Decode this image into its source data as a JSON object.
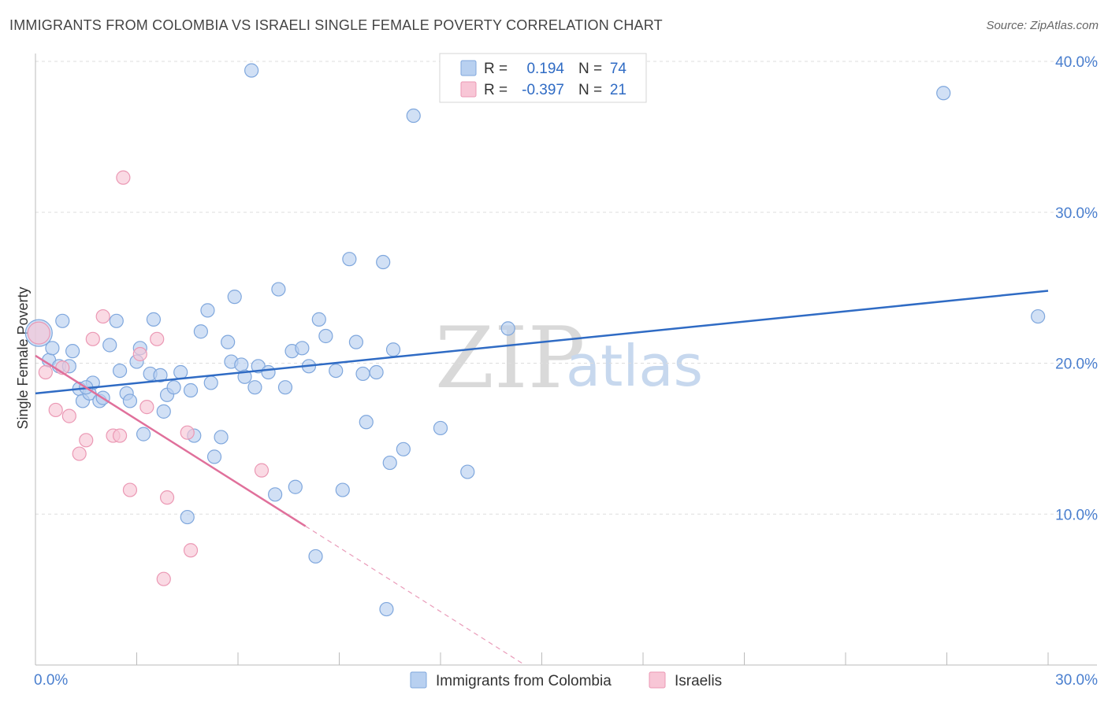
{
  "header": {
    "title": "IMMIGRANTS FROM COLOMBIA VS ISRAELI SINGLE FEMALE POVERTY CORRELATION CHART",
    "source": "Source: ZipAtlas.com"
  },
  "watermark": {
    "zip": "ZIP",
    "atlas": "atlas"
  },
  "colors": {
    "series1_fill": "#b8d0f0",
    "series1_stroke": "#7fa7dd",
    "series1_line": "#2f6bc4",
    "series2_fill": "#f8c6d6",
    "series2_stroke": "#eb98b4",
    "series2_line": "#e0709b",
    "axis_label": "#4a7fcf",
    "grid": "#dddddd"
  },
  "stats_box": {
    "rows": [
      {
        "r_label": "R =",
        "r_value": "0.194",
        "n_label": "N =",
        "n_value": "74"
      },
      {
        "r_label": "R =",
        "r_value": "-0.397",
        "n_label": "N =",
        "n_value": "21"
      }
    ]
  },
  "chart_data": {
    "type": "scatter",
    "title": "IMMIGRANTS FROM COLOMBIA VS ISRAELI SINGLE FEMALE POVERTY CORRELATION CHART",
    "xlabel": "",
    "ylabel": "Single Female Poverty",
    "xlim": [
      0,
      30
    ],
    "ylim": [
      0,
      40
    ],
    "x_tick_labels": [
      "0.0%",
      "30.0%"
    ],
    "y_ticks": [
      10,
      20,
      30,
      40
    ],
    "y_tick_labels": [
      "10.0%",
      "20.0%",
      "30.0%",
      "40.0%"
    ],
    "grid": true,
    "legend": [
      "Immigrants from Colombia",
      "Israelis"
    ],
    "series": [
      {
        "name": "Immigrants from Colombia",
        "r": 0.194,
        "n": 74,
        "trend": {
          "x": [
            0,
            30
          ],
          "y": [
            18.0,
            24.8
          ]
        },
        "points": [
          [
            0.1,
            22.0
          ],
          [
            0.4,
            20.2
          ],
          [
            0.5,
            21.0
          ],
          [
            0.7,
            19.8
          ],
          [
            0.8,
            22.8
          ],
          [
            1.0,
            19.8
          ],
          [
            1.1,
            20.8
          ],
          [
            1.3,
            18.3
          ],
          [
            1.4,
            17.5
          ],
          [
            1.6,
            18.0
          ],
          [
            1.7,
            18.7
          ],
          [
            1.9,
            17.5
          ],
          [
            2.0,
            17.7
          ],
          [
            2.2,
            21.2
          ],
          [
            2.4,
            22.8
          ],
          [
            2.5,
            19.5
          ],
          [
            2.7,
            18.0
          ],
          [
            2.8,
            17.5
          ],
          [
            3.0,
            20.1
          ],
          [
            3.1,
            21.0
          ],
          [
            3.2,
            15.3
          ],
          [
            3.4,
            19.3
          ],
          [
            3.5,
            22.9
          ],
          [
            3.7,
            19.2
          ],
          [
            3.8,
            16.8
          ],
          [
            3.9,
            17.9
          ],
          [
            4.1,
            18.4
          ],
          [
            4.3,
            19.4
          ],
          [
            4.5,
            9.8
          ],
          [
            4.6,
            18.2
          ],
          [
            4.7,
            15.2
          ],
          [
            4.9,
            22.1
          ],
          [
            5.1,
            23.5
          ],
          [
            5.2,
            18.7
          ],
          [
            5.3,
            13.8
          ],
          [
            5.5,
            15.1
          ],
          [
            5.7,
            21.4
          ],
          [
            5.8,
            20.1
          ],
          [
            5.9,
            24.4
          ],
          [
            6.1,
            19.9
          ],
          [
            6.2,
            19.1
          ],
          [
            6.4,
            39.4
          ],
          [
            6.5,
            18.4
          ],
          [
            6.6,
            19.8
          ],
          [
            6.9,
            19.4
          ],
          [
            7.1,
            11.3
          ],
          [
            7.2,
            24.9
          ],
          [
            7.4,
            18.4
          ],
          [
            7.6,
            20.8
          ],
          [
            7.7,
            11.8
          ],
          [
            7.9,
            21.0
          ],
          [
            8.1,
            19.8
          ],
          [
            8.3,
            7.2
          ],
          [
            8.4,
            22.9
          ],
          [
            8.6,
            21.8
          ],
          [
            8.9,
            19.5
          ],
          [
            9.1,
            11.6
          ],
          [
            9.3,
            26.9
          ],
          [
            9.5,
            21.4
          ],
          [
            9.7,
            19.3
          ],
          [
            9.8,
            16.1
          ],
          [
            10.1,
            19.4
          ],
          [
            10.3,
            26.7
          ],
          [
            10.4,
            3.7
          ],
          [
            10.5,
            13.4
          ],
          [
            10.6,
            20.9
          ],
          [
            10.9,
            14.3
          ],
          [
            11.2,
            36.4
          ],
          [
            12.0,
            15.7
          ],
          [
            12.8,
            12.8
          ],
          [
            14.0,
            22.3
          ],
          [
            26.9,
            37.9
          ],
          [
            29.7,
            23.1
          ],
          [
            1.5,
            18.4
          ]
        ]
      },
      {
        "name": "Israelis",
        "r": -0.397,
        "n": 21,
        "trend": {
          "x": [
            0,
            8.0
          ],
          "y": [
            20.5,
            9.2
          ]
        },
        "trend_dashed": {
          "x": [
            8.0,
            14.5
          ],
          "y": [
            9.2,
            0
          ]
        },
        "points": [
          [
            0.1,
            22.0
          ],
          [
            0.3,
            19.4
          ],
          [
            0.6,
            16.9
          ],
          [
            0.8,
            19.7
          ],
          [
            1.0,
            16.5
          ],
          [
            1.3,
            14.0
          ],
          [
            1.5,
            14.9
          ],
          [
            1.7,
            21.6
          ],
          [
            2.0,
            23.1
          ],
          [
            2.3,
            15.2
          ],
          [
            2.6,
            32.3
          ],
          [
            2.8,
            11.6
          ],
          [
            3.1,
            20.6
          ],
          [
            3.3,
            17.1
          ],
          [
            3.6,
            21.6
          ],
          [
            3.8,
            5.7
          ],
          [
            3.9,
            11.1
          ],
          [
            4.5,
            15.4
          ],
          [
            4.6,
            7.6
          ],
          [
            6.7,
            12.9
          ],
          [
            2.5,
            15.2
          ]
        ]
      }
    ]
  }
}
